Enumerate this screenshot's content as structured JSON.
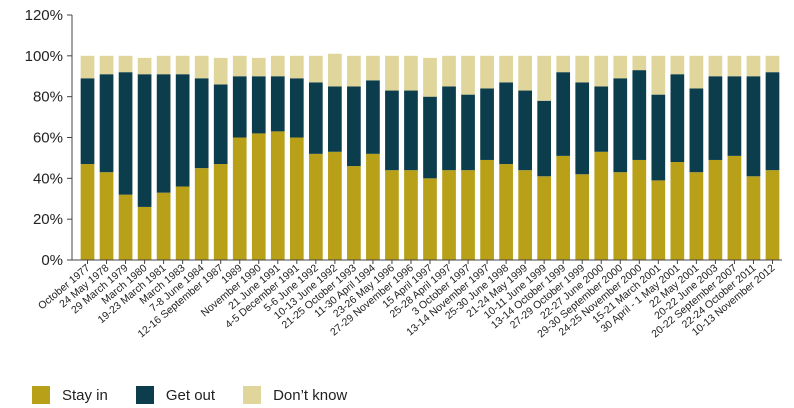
{
  "chart_data": {
    "type": "bar",
    "stacked": true,
    "title": "",
    "xlabel": "",
    "ylabel": "",
    "ylim": [
      0,
      120
    ],
    "yticks": [
      "0%",
      "20%",
      "40%",
      "60%",
      "80%",
      "100%",
      "120%"
    ],
    "grid": false,
    "legend_position": "bottom-left",
    "colors": {
      "stay_in": "#B8A019",
      "get_out": "#0B3D4C",
      "dont_know": "#E0D59B"
    },
    "categories": [
      "October 1977",
      "24 May 1978",
      "29 March 1979",
      "March 1980",
      "19-23 March 1981",
      "March 1983",
      "7-8 June 1984",
      "12-16 September 1987",
      "1989",
      "November 1990",
      "21 June 1991",
      "4-5 December 1991",
      "5-6 June 1992",
      "10-13 June 1992",
      "21-25 October 1993",
      "11-30 April 1994",
      "23-26 May 1996",
      "27-29 November 1996",
      "15 April 1997",
      "25-28 April 1997",
      "3 October 1997",
      "13-14 November 1997",
      "25-30 June 1998",
      "21-24 May 1999",
      "10-11 June 1999",
      "13-14 October 1999",
      "27-29 October 1999",
      "22-27 June 2000",
      "29-30 September 2000",
      "24-25 November 2000",
      "15-21 March 2001",
      "30 April - 1 May 2001",
      "22 May 2001",
      "20-22 June 2003",
      "20-22 September 2007",
      "22-24 October 2011",
      "10-13 November 2012"
    ],
    "series": [
      {
        "name": "Stay in",
        "values": [
          47,
          43,
          32,
          26,
          33,
          36,
          45,
          47,
          60,
          62,
          63,
          60,
          52,
          53,
          46,
          52,
          44,
          44,
          40,
          44,
          44,
          49,
          47,
          44,
          41,
          51,
          42,
          53,
          43,
          49,
          39,
          48,
          43,
          49,
          51,
          41,
          44
        ]
      },
      {
        "name": "Get out",
        "values": [
          42,
          48,
          60,
          65,
          58,
          55,
          44,
          39,
          30,
          28,
          27,
          29,
          35,
          32,
          39,
          36,
          39,
          39,
          40,
          41,
          37,
          35,
          40,
          39,
          37,
          41,
          45,
          32,
          46,
          44,
          42,
          43,
          41,
          41,
          39,
          49,
          48
        ]
      },
      {
        "name": "Don't know",
        "values": [
          11,
          9,
          8,
          8,
          9,
          9,
          11,
          13,
          10,
          9,
          10,
          11,
          13,
          16,
          15,
          12,
          17,
          17,
          19,
          15,
          19,
          16,
          13,
          17,
          22,
          8,
          13,
          15,
          11,
          7,
          19,
          9,
          16,
          10,
          10,
          10,
          8
        ]
      }
    ]
  },
  "legend": {
    "items": [
      {
        "label": "Stay in",
        "color": "#B8A019"
      },
      {
        "label": "Get out",
        "color": "#0B3D4C"
      },
      {
        "label": "Don’t know",
        "color": "#E0D59B"
      }
    ]
  }
}
